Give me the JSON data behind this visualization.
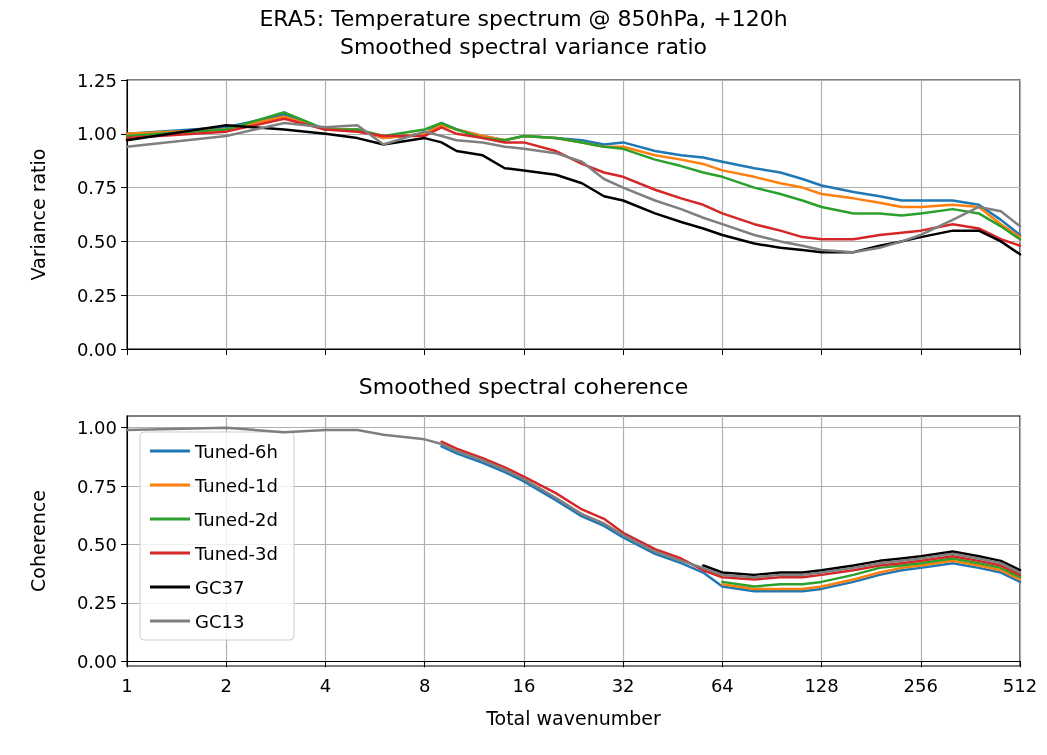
{
  "chart_data": [
    {
      "type": "line",
      "title": "ERA5: Temperature spectrum @ 850hPa, +120h",
      "subtitle": "Smoothed spectral variance ratio",
      "ylabel": "Variance ratio",
      "x": [
        1,
        2,
        3,
        4,
        5,
        6,
        8,
        9,
        10,
        12,
        14,
        16,
        20,
        24,
        28,
        32,
        40,
        48,
        56,
        64,
        80,
        96,
        112,
        128,
        160,
        192,
        224,
        256,
        320,
        384,
        448,
        512
      ],
      "series": [
        {
          "color": "#1f77b4",
          "values": [
            1.0,
            1.03,
            1.09,
            1.02,
            1.02,
            0.98,
            1.0,
            1.05,
            1.02,
            0.99,
            0.97,
            0.99,
            0.98,
            0.97,
            0.95,
            0.96,
            0.92,
            0.9,
            0.89,
            0.87,
            0.84,
            0.82,
            0.79,
            0.76,
            0.73,
            0.71,
            0.69,
            0.69,
            0.69,
            0.67,
            0.6,
            0.53
          ]
        },
        {
          "color": "#ff7f0e",
          "values": [
            1.0,
            1.02,
            1.08,
            1.02,
            1.02,
            0.98,
            1.0,
            1.04,
            1.02,
            0.99,
            0.97,
            0.99,
            0.98,
            0.96,
            0.94,
            0.94,
            0.9,
            0.88,
            0.86,
            0.83,
            0.8,
            0.77,
            0.75,
            0.72,
            0.7,
            0.68,
            0.66,
            0.66,
            0.67,
            0.66,
            0.58,
            0.52
          ]
        },
        {
          "color": "#2ca02c",
          "values": [
            0.99,
            1.02,
            1.1,
            1.02,
            1.02,
            0.99,
            1.02,
            1.05,
            1.02,
            0.98,
            0.97,
            0.99,
            0.98,
            0.96,
            0.94,
            0.93,
            0.88,
            0.85,
            0.82,
            0.8,
            0.75,
            0.72,
            0.69,
            0.66,
            0.63,
            0.63,
            0.62,
            0.63,
            0.65,
            0.63,
            0.57,
            0.51
          ]
        },
        {
          "color": "#d62728",
          "values": [
            0.98,
            1.01,
            1.07,
            1.02,
            1.01,
            0.99,
            0.99,
            1.03,
            1.0,
            0.98,
            0.96,
            0.96,
            0.92,
            0.86,
            0.82,
            0.8,
            0.74,
            0.7,
            0.67,
            0.63,
            0.58,
            0.55,
            0.52,
            0.51,
            0.51,
            0.53,
            0.54,
            0.55,
            0.58,
            0.56,
            0.51,
            0.48
          ]
        },
        {
          "color": "#000000",
          "values": [
            0.97,
            1.04,
            1.02,
            1.0,
            0.98,
            0.95,
            0.98,
            0.96,
            0.92,
            0.9,
            0.84,
            0.83,
            0.81,
            0.77,
            0.71,
            0.69,
            0.63,
            0.59,
            0.56,
            0.53,
            0.49,
            0.47,
            0.46,
            0.45,
            0.45,
            0.48,
            0.5,
            0.52,
            0.55,
            0.55,
            0.5,
            0.44
          ]
        },
        {
          "color": "#7f7f7f",
          "values": [
            0.94,
            0.99,
            1.05,
            1.03,
            1.04,
            0.95,
            1.01,
            0.99,
            0.97,
            0.96,
            0.94,
            0.93,
            0.91,
            0.87,
            0.79,
            0.75,
            0.69,
            0.65,
            0.61,
            0.58,
            0.53,
            0.5,
            0.48,
            0.46,
            0.45,
            0.47,
            0.5,
            0.53,
            0.6,
            0.66,
            0.64,
            0.57
          ]
        }
      ],
      "log": "x",
      "xlim": [
        1,
        512
      ],
      "xticks": [
        1,
        2,
        4,
        8,
        16,
        32,
        64,
        128,
        256,
        512
      ],
      "ylim": [
        0,
        1.25
      ],
      "yticks": [
        {
          "value": 0,
          "label": "0.00"
        },
        {
          "value": 0.25,
          "label": "0.25"
        },
        {
          "value": 0.5,
          "label": "0.50"
        },
        {
          "value": 0.75,
          "label": "0.75"
        },
        {
          "value": 1,
          "label": "1.00"
        },
        {
          "value": 1.25,
          "label": "1.25"
        }
      ],
      "grid": true,
      "legend": false,
      "tick_labels": "y"
    },
    {
      "type": "line",
      "title": "Smoothed spectral coherence",
      "xlabel": "Total wavenumber",
      "ylabel": "Coherence",
      "x": [
        1,
        2,
        3,
        4,
        5,
        6,
        8,
        9,
        10,
        12,
        14,
        16,
        20,
        24,
        28,
        32,
        40,
        48,
        56,
        64,
        80,
        96,
        112,
        128,
        160,
        192,
        224,
        256,
        320,
        384,
        448,
        512
      ],
      "series": [
        {
          "name": "Tuned-6h",
          "color": "#1f77b4",
          "values": [
            null,
            null,
            null,
            null,
            null,
            null,
            null,
            0.92,
            0.89,
            0.85,
            0.81,
            0.77,
            0.69,
            0.62,
            0.58,
            0.53,
            0.46,
            0.42,
            0.38,
            0.32,
            0.3,
            0.3,
            0.3,
            0.31,
            0.34,
            0.37,
            0.39,
            0.4,
            0.42,
            0.4,
            0.38,
            0.34
          ]
        },
        {
          "name": "Tuned-1d",
          "color": "#ff7f0e",
          "values": [
            null,
            null,
            null,
            null,
            null,
            null,
            null,
            null,
            null,
            null,
            null,
            null,
            null,
            null,
            null,
            null,
            null,
            null,
            null,
            0.33,
            0.31,
            0.31,
            0.31,
            0.32,
            0.35,
            0.38,
            0.4,
            0.41,
            0.43,
            0.41,
            0.39,
            0.35
          ]
        },
        {
          "name": "Tuned-2d",
          "color": "#2ca02c",
          "values": [
            null,
            null,
            null,
            null,
            null,
            null,
            null,
            null,
            null,
            null,
            null,
            null,
            null,
            null,
            null,
            null,
            null,
            null,
            null,
            0.34,
            0.32,
            0.33,
            0.33,
            0.34,
            0.37,
            0.4,
            0.41,
            0.42,
            0.44,
            0.42,
            0.4,
            0.36
          ]
        },
        {
          "name": "Tuned-3d",
          "color": "#d62728",
          "values": [
            null,
            null,
            null,
            null,
            null,
            null,
            null,
            0.94,
            0.91,
            0.87,
            0.83,
            0.79,
            0.72,
            0.65,
            0.61,
            0.55,
            0.48,
            0.44,
            0.39,
            0.36,
            0.35,
            0.36,
            0.36,
            0.37,
            0.39,
            0.41,
            0.42,
            0.43,
            0.45,
            0.43,
            0.41,
            0.37
          ]
        },
        {
          "name": "GC37",
          "color": "#000000",
          "values": [
            null,
            null,
            null,
            null,
            null,
            null,
            null,
            null,
            null,
            null,
            null,
            null,
            null,
            null,
            null,
            null,
            null,
            null,
            0.41,
            0.38,
            0.37,
            0.38,
            0.38,
            0.39,
            0.41,
            0.43,
            0.44,
            0.45,
            0.47,
            0.45,
            0.43,
            0.39
          ]
        },
        {
          "name": "GC13",
          "color": "#7f7f7f",
          "values": [
            0.99,
            1.0,
            0.98,
            0.99,
            0.99,
            0.97,
            0.95,
            0.93,
            0.9,
            0.86,
            0.82,
            0.78,
            0.7,
            0.63,
            0.59,
            0.54,
            0.47,
            0.43,
            0.4,
            0.37,
            0.36,
            0.37,
            0.37,
            0.38,
            0.4,
            0.42,
            0.43,
            0.44,
            0.46,
            0.44,
            0.42,
            0.38
          ]
        }
      ],
      "log": "x",
      "xlim": [
        1,
        512
      ],
      "xticks": [
        1,
        2,
        4,
        8,
        16,
        32,
        64,
        128,
        256,
        512
      ],
      "ylim": [
        -0.02,
        1.05
      ],
      "yticks": [
        {
          "value": 0,
          "label": "0.00"
        },
        {
          "value": 0.25,
          "label": "0.25"
        },
        {
          "value": 0.5,
          "label": "0.50"
        },
        {
          "value": 0.75,
          "label": "0.75"
        },
        {
          "value": 1,
          "label": "1.00"
        }
      ],
      "grid": true,
      "legend": "top left"
    }
  ]
}
